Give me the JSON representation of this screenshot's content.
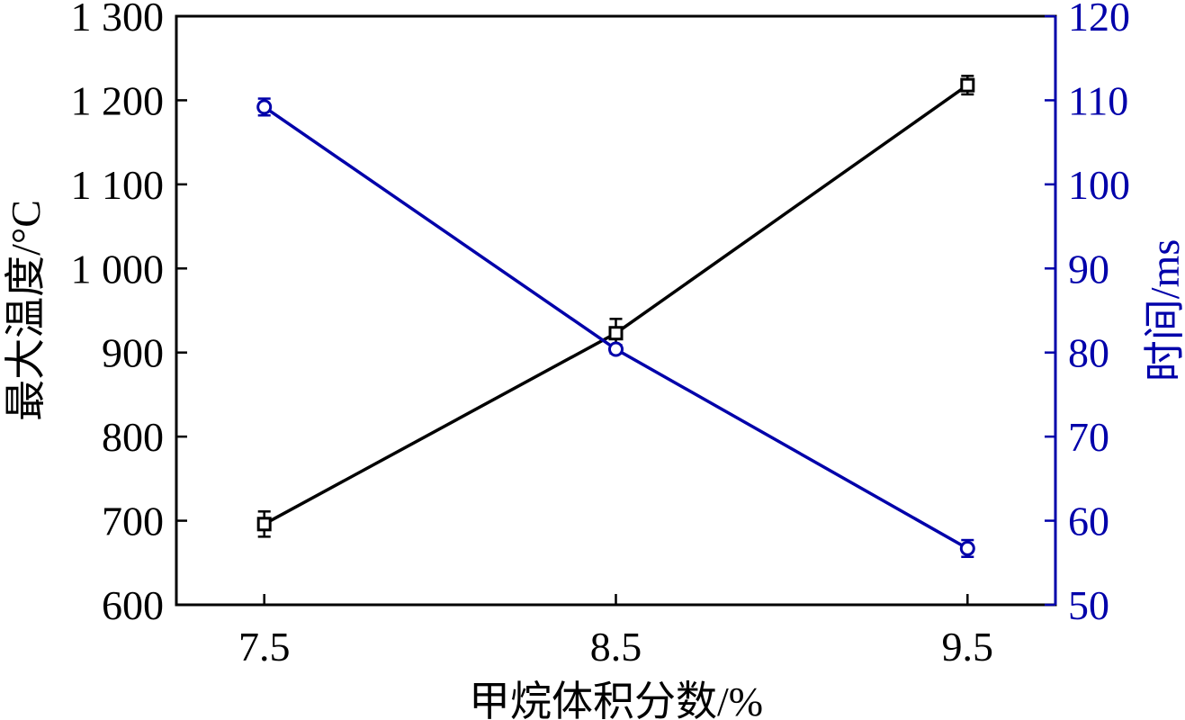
{
  "chart_data": {
    "type": "line",
    "xlabel": "甲烷体积分数/%",
    "x": [
      7.5,
      8.5,
      9.5
    ],
    "xticks": [
      {
        "v": 7.5,
        "label": "7.5"
      },
      {
        "v": 8.5,
        "label": "8.5"
      },
      {
        "v": 9.5,
        "label": "9.5"
      }
    ],
    "xlim": [
      7.25,
      9.75
    ],
    "y_left": {
      "label": "最大温度/°C",
      "lim": [
        600,
        1300
      ],
      "ticks": [
        {
          "v": 600,
          "label": "600"
        },
        {
          "v": 700,
          "label": "700"
        },
        {
          "v": 800,
          "label": "800"
        },
        {
          "v": 900,
          "label": "900"
        },
        {
          "v": 1000,
          "label": "1 000"
        },
        {
          "v": 1100,
          "label": "1 100"
        },
        {
          "v": 1200,
          "label": "1 200"
        },
        {
          "v": 1300,
          "label": "1 300"
        }
      ],
      "color": "#000000"
    },
    "y_right": {
      "label": "时间/ms",
      "lim": [
        50,
        120
      ],
      "ticks": [
        {
          "v": 50,
          "label": "50"
        },
        {
          "v": 60,
          "label": "60"
        },
        {
          "v": 70,
          "label": "70"
        },
        {
          "v": 80,
          "label": "80"
        },
        {
          "v": 90,
          "label": "90"
        },
        {
          "v": 100,
          "label": "100"
        },
        {
          "v": 110,
          "label": "110"
        },
        {
          "v": 120,
          "label": "120"
        }
      ],
      "color": "#0000aa"
    },
    "series": [
      {
        "axis": "left",
        "marker": "square",
        "color": "#000000",
        "values": [
          696,
          923,
          1218
        ],
        "errors": [
          15,
          17,
          11
        ]
      },
      {
        "axis": "right",
        "marker": "circle",
        "color": "#0000aa",
        "values": [
          109.2,
          80.4,
          56.7
        ],
        "errors": [
          1.0,
          0.5,
          1.0
        ]
      }
    ],
    "grid": false,
    "legend": "none"
  }
}
